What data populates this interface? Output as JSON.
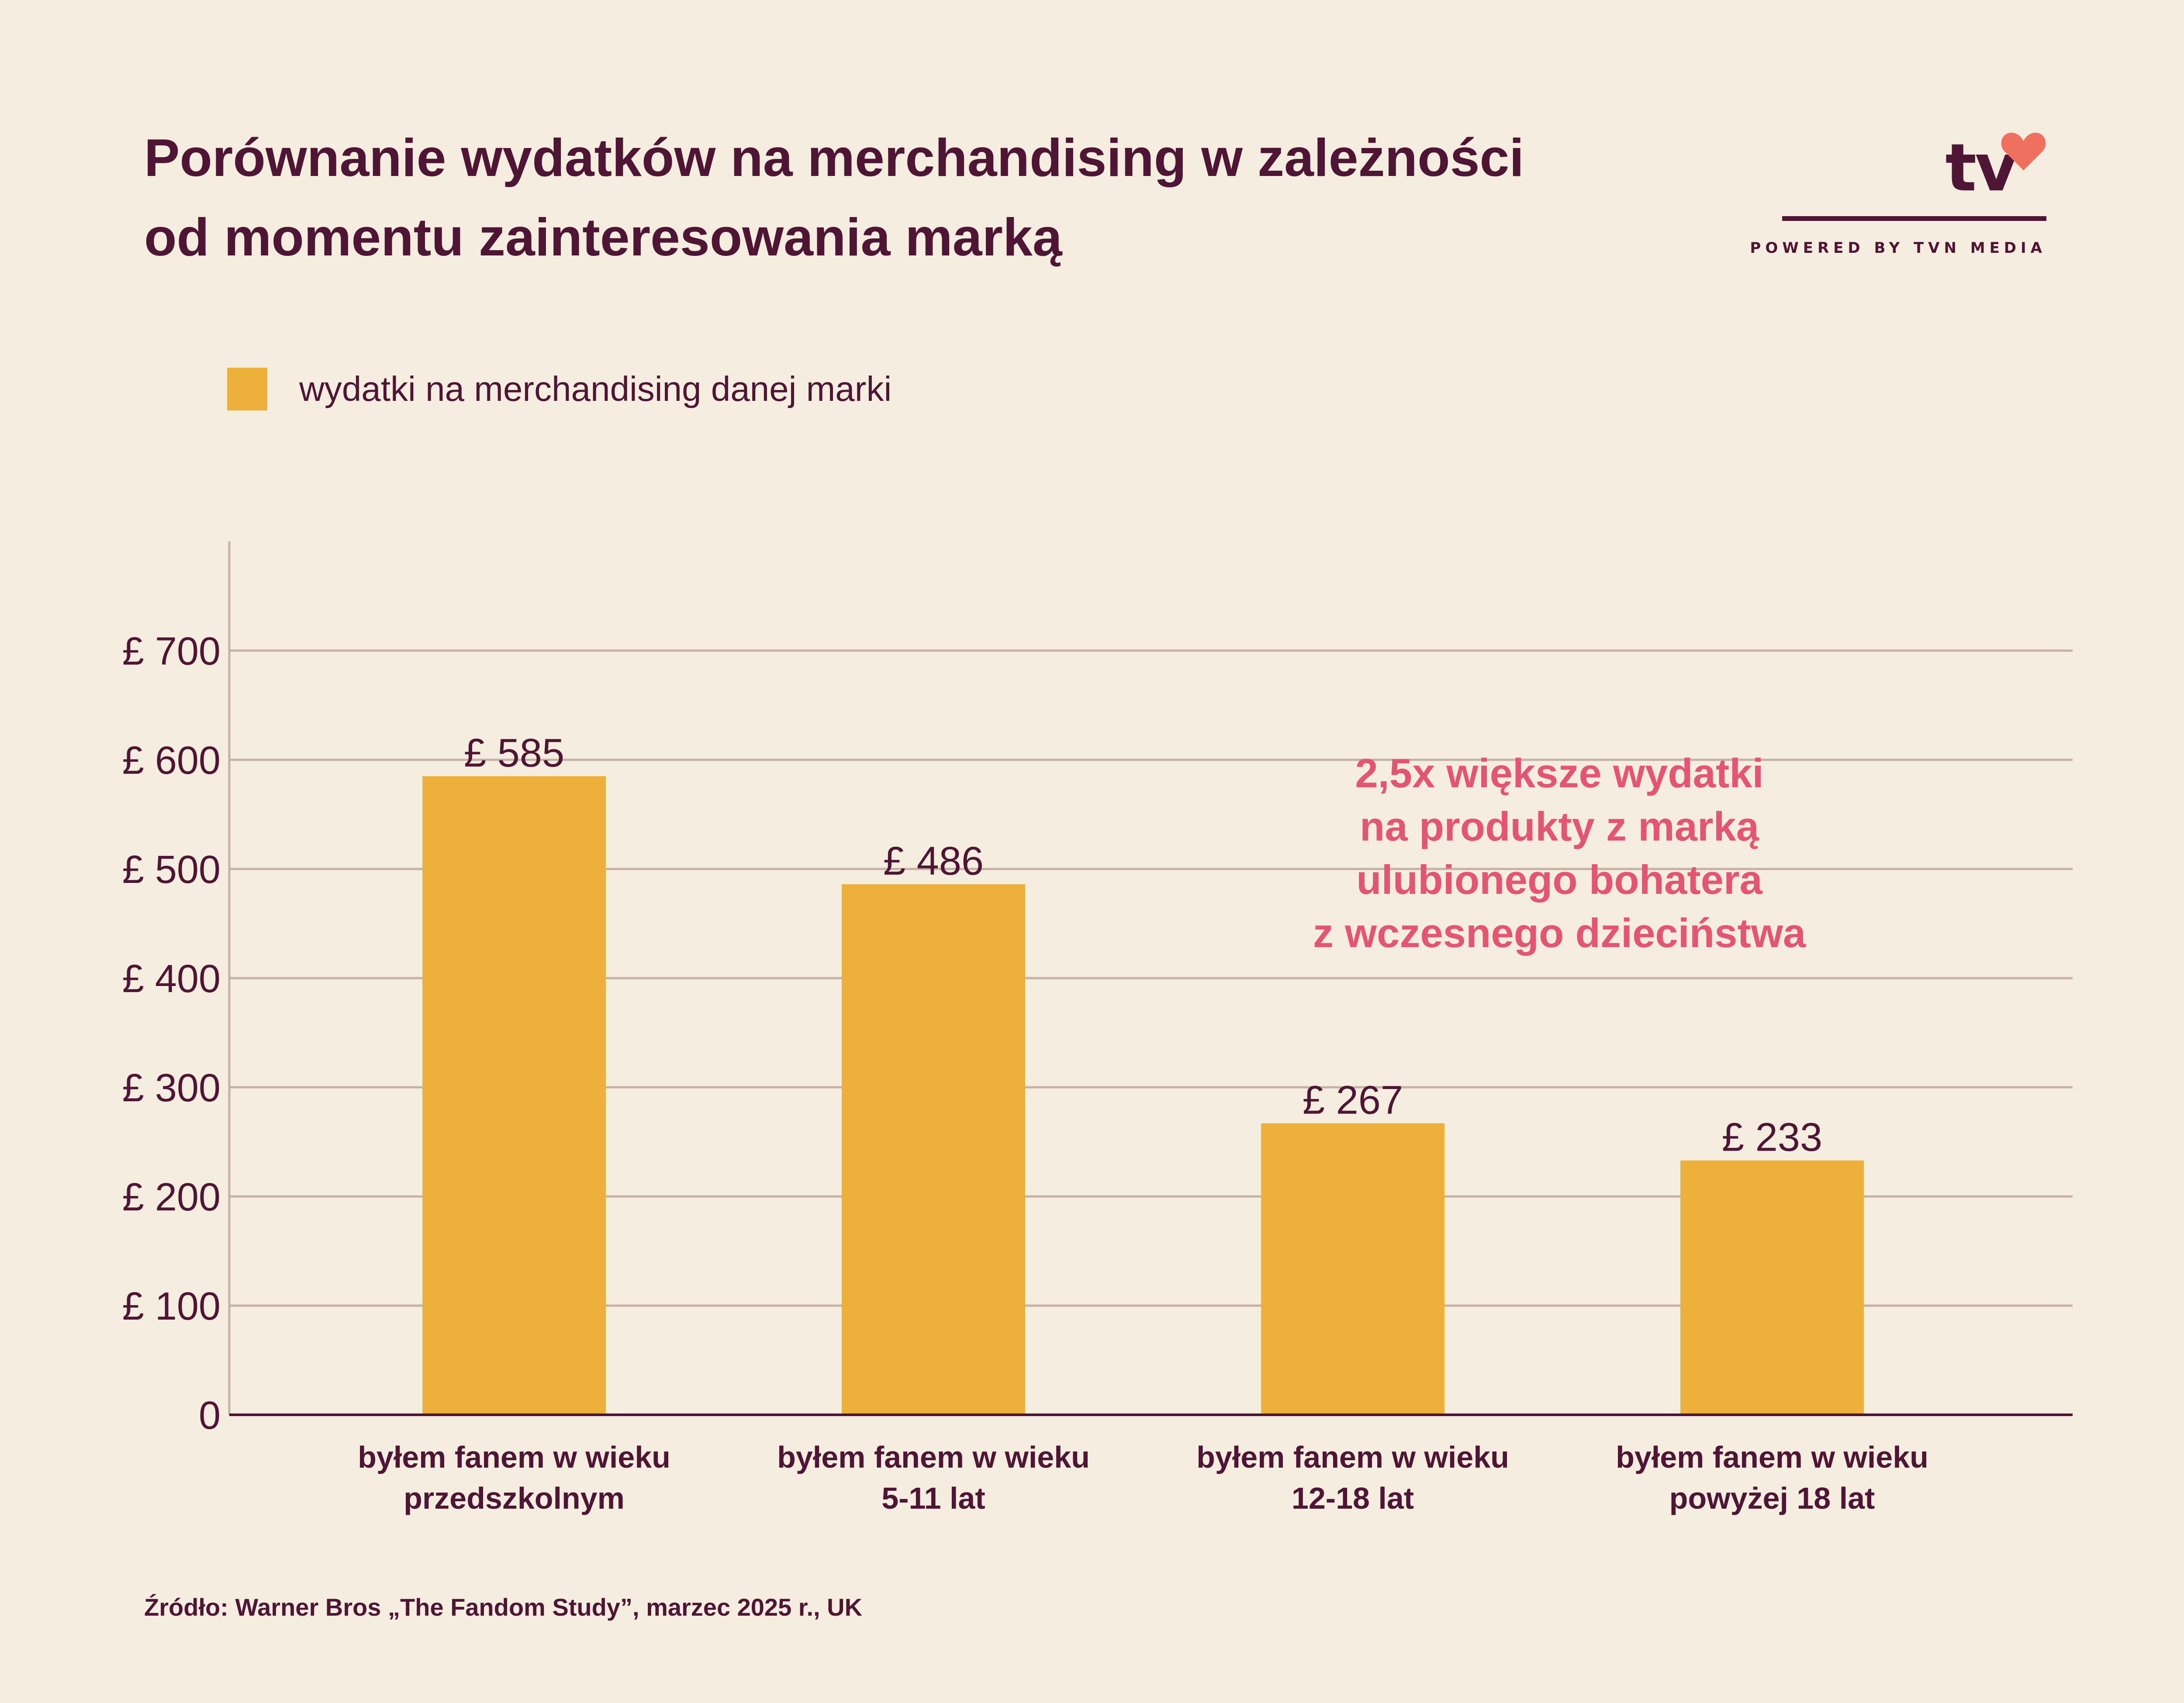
{
  "title_lines": [
    "Porównanie wydatków na merchandising w zależności",
    "od momentu zainteresowania marką"
  ],
  "logo": {
    "text": "tv",
    "tagline": "POWERED BY TVN MEDIA"
  },
  "legend": {
    "label": "wydatki na merchandising danej marki",
    "color": "#ecb03b"
  },
  "annotation_lines": [
    "2,5x większe wydatki",
    "na produkty z marką",
    "ulubionego bohatera",
    "z wczesnego dzieciństwa"
  ],
  "source": "Źródło: Warner Bros „The Fandom Study”, marzec 2025 r., UK",
  "chart_data": {
    "type": "bar",
    "categories": [
      [
        "byłem fanem w wieku",
        "przedszkolnym"
      ],
      [
        "byłem fanem w wieku",
        "5-11 lat"
      ],
      [
        "byłem fanem w wieku",
        "12-18 lat"
      ],
      [
        "byłem fanem w wieku",
        "powyżej 18 lat"
      ]
    ],
    "series": [
      {
        "name": "wydatki na merchandising danej marki",
        "values": [
          585,
          486,
          267,
          233
        ],
        "color": "#ecb03b"
      }
    ],
    "data_labels": [
      "£ 585",
      "£ 486",
      "£ 267",
      "£ 233"
    ],
    "yticks": [
      0,
      100,
      200,
      300,
      400,
      500,
      600,
      700
    ],
    "ytick_labels": [
      "0",
      "£ 100",
      "£ 200",
      "£ 300",
      "£ 400",
      "£ 500",
      "£ 600",
      "£ 700"
    ],
    "ylim": [
      0,
      800
    ],
    "grid": true,
    "legend_position": "top-left",
    "colors": {
      "bar": "#ecb03b",
      "grid": "#c4b0a5",
      "axis": "#4e1535",
      "text": "#4e1535",
      "highlight": "#e35571"
    }
  }
}
